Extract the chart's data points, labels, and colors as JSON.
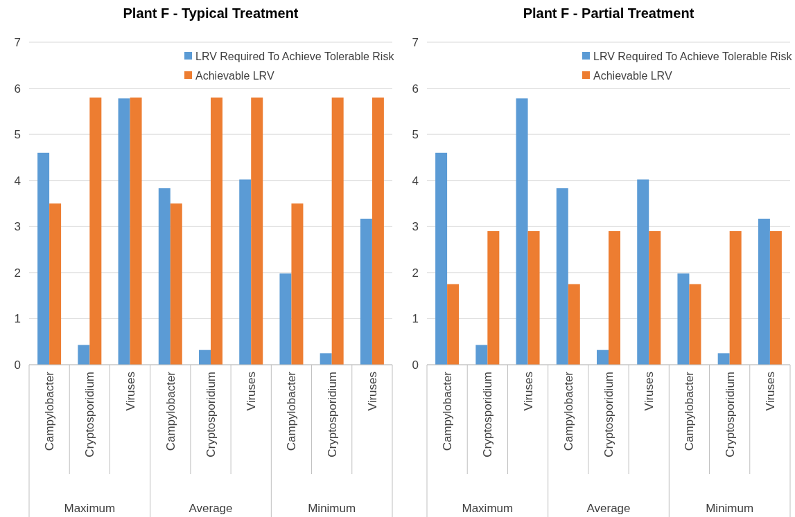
{
  "chart_data": [
    {
      "type": "bar",
      "title": "Plant F - Typical Treatment",
      "categories": [
        "Campylobacter",
        "Cryptosporidium",
        "Viruses",
        "Campylobacter",
        "Cryptosporidium",
        "Viruses",
        "Campylobacter",
        "Cryptosporidium",
        "Viruses"
      ],
      "annotations": [
        "Maximum",
        "Average",
        "Minimum"
      ],
      "series": [
        {
          "name": "LRV Required To Achieve Tolerable Risk",
          "color": "#5b9bd5",
          "values": [
            4.6,
            0.43,
            5.78,
            3.83,
            0.32,
            4.02,
            1.98,
            0.25,
            3.17
          ]
        },
        {
          "name": "Achievable LRV",
          "color": "#ed7d31",
          "values": [
            3.5,
            5.8,
            5.8,
            3.5,
            5.8,
            5.8,
            3.5,
            5.8,
            5.8
          ]
        }
      ],
      "ylim": [
        0,
        7
      ],
      "yticks": [
        0,
        1,
        2,
        3,
        4,
        5,
        6,
        7
      ],
      "grid": "y",
      "legend": "top right"
    },
    {
      "type": "bar",
      "title": "Plant F - Partial Treatment",
      "categories": [
        "Campylobacter",
        "Cryptosporidium",
        "Viruses",
        "Campylobacter",
        "Cryptosporidium",
        "Viruses",
        "Campylobacter",
        "Cryptosporidium",
        "Viruses"
      ],
      "annotations": [
        "Maximum",
        "Average",
        "Minimum"
      ],
      "series": [
        {
          "name": "LRV Required To Achieve Tolerable Risk",
          "color": "#5b9bd5",
          "values": [
            4.6,
            0.43,
            5.78,
            3.83,
            0.32,
            4.02,
            1.98,
            0.25,
            3.17
          ]
        },
        {
          "name": "Achievable LRV",
          "color": "#ed7d31",
          "values": [
            1.75,
            2.9,
            2.9,
            1.75,
            2.9,
            2.9,
            1.75,
            2.9,
            2.9
          ]
        }
      ],
      "ylim": [
        0,
        7
      ],
      "yticks": [
        0,
        1,
        2,
        3,
        4,
        5,
        6,
        7
      ],
      "grid": "y",
      "legend": "top right"
    }
  ]
}
